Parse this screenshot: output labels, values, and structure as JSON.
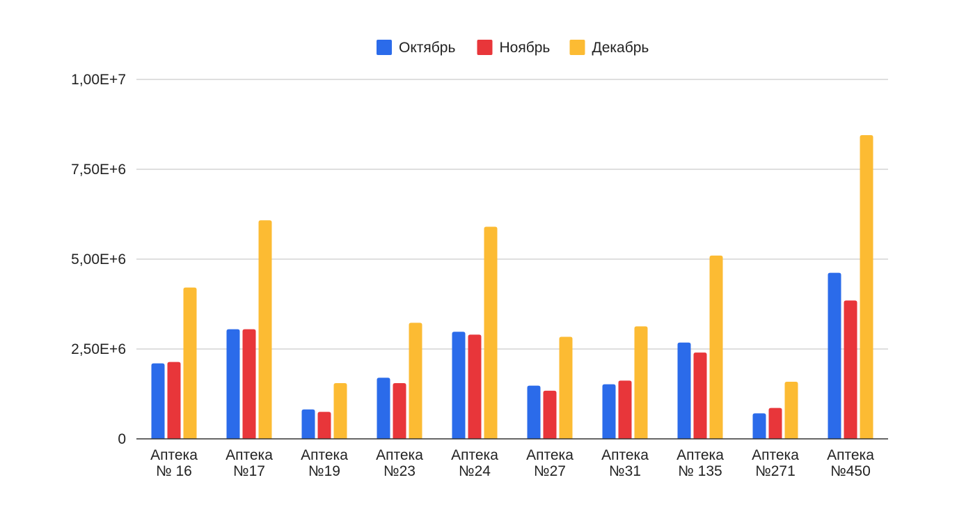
{
  "chart_data": {
    "type": "bar",
    "title": "",
    "xlabel": "",
    "ylabel": "",
    "categories": [
      [
        "Аптека",
        "№ 16"
      ],
      [
        "Аптека",
        "№17"
      ],
      [
        "Аптека",
        "№19"
      ],
      [
        "Аптека",
        "№23"
      ],
      [
        "Аптека",
        "№24"
      ],
      [
        "Аптека",
        "№27"
      ],
      [
        "Аптека",
        "№31"
      ],
      [
        "Аптека",
        "№ 135"
      ],
      [
        "Аптека",
        "№271"
      ],
      [
        "Аптека",
        "№450"
      ]
    ],
    "series": [
      {
        "name": "Октябрь",
        "color": "#2b6bea",
        "values": [
          2100000,
          3050000,
          820000,
          1700000,
          2980000,
          1480000,
          1520000,
          2680000,
          710000,
          4620000
        ]
      },
      {
        "name": "Ноябрь",
        "color": "#e8363a",
        "values": [
          2140000,
          3050000,
          750000,
          1550000,
          2900000,
          1340000,
          1620000,
          2400000,
          860000,
          3850000
        ]
      },
      {
        "name": "Декабрь",
        "color": "#fcbb33",
        "values": [
          4210000,
          6080000,
          1550000,
          3230000,
          5900000,
          2840000,
          3130000,
          5100000,
          1590000,
          8450000
        ]
      }
    ],
    "ylim": [
      0,
      10000000
    ],
    "yticks": [
      {
        "value": 0,
        "label": "0"
      },
      {
        "value": 2500000,
        "label": "2,50E+6"
      },
      {
        "value": 5000000,
        "label": "5,00E+6"
      },
      {
        "value": 7500000,
        "label": "7,50E+6"
      },
      {
        "value": 10000000,
        "label": "1,00E+7"
      }
    ],
    "grid": true,
    "legend_position": "top-center"
  }
}
